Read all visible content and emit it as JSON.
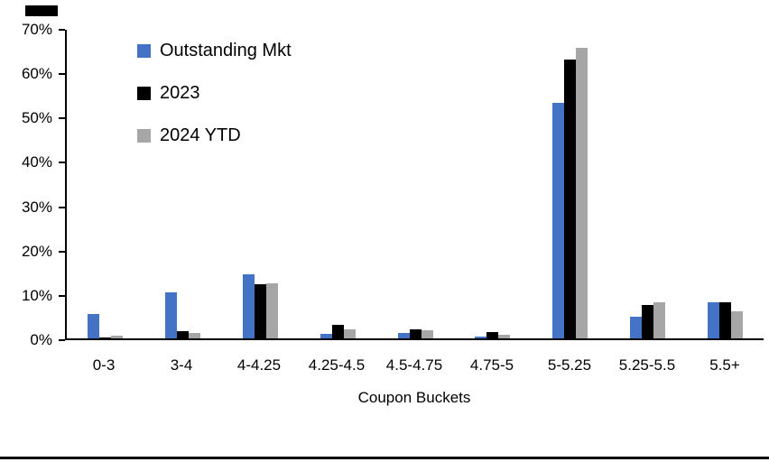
{
  "chart_data": {
    "type": "bar",
    "title": "",
    "xlabel": "Coupon Buckets",
    "ylabel": "",
    "ylim": [
      0,
      70
    ],
    "ytick_step": 10,
    "ytick_format": "percent",
    "grid": false,
    "legend_position": "top-left-inside",
    "categories": [
      "0-3",
      "3-4",
      "4-4.25",
      "4.25-4.5",
      "4.5-4.75",
      "4.75-5",
      "5-5.25",
      "5.25-5.5",
      "5.5+"
    ],
    "series": [
      {
        "name": "Outstanding Mkt",
        "color": "#4472C4",
        "values": [
          5.5,
          10.5,
          14.5,
          1.0,
          1.2,
          0.5,
          53.5,
          5.0,
          8.2
        ]
      },
      {
        "name": "2023",
        "color": "#000000",
        "values": [
          0.2,
          1.7,
          12.3,
          3.0,
          2.0,
          1.5,
          63.2,
          7.5,
          8.2
        ]
      },
      {
        "name": "2024 YTD",
        "color": "#A6A6A6",
        "values": [
          0.6,
          1.2,
          12.5,
          2.1,
          1.8,
          0.8,
          66.0,
          8.2,
          6.2
        ]
      }
    ]
  },
  "decorations": {
    "header_mark_color": "#000000",
    "footer_rule_color": "#000000",
    "axis_color": "#000000"
  }
}
